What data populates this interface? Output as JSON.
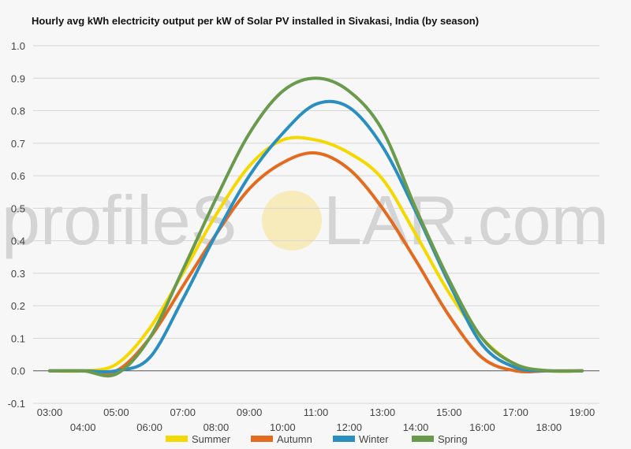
{
  "chart_data": {
    "type": "line",
    "title": "Hourly avg kWh electricity output per kW of Solar PV installed in Sivakasi, India (by season)",
    "xlabel": "",
    "ylabel": "",
    "ylim": [
      -0.1,
      1.0
    ],
    "yticks": [
      "-0.1",
      "0.0",
      "0.1",
      "0.2",
      "0.3",
      "0.4",
      "0.5",
      "0.6",
      "0.7",
      "0.8",
      "0.9",
      "1.0"
    ],
    "xticks": [
      "03:00",
      "04:00",
      "05:00",
      "06:00",
      "07:00",
      "08:00",
      "09:00",
      "10:00",
      "11:00",
      "12:00",
      "13:00",
      "14:00",
      "15:00",
      "16:00",
      "17:00",
      "18:00",
      "19:00"
    ],
    "x": [
      3,
      4,
      5,
      6,
      7,
      8,
      9,
      10,
      11,
      12,
      13,
      14,
      15,
      16,
      17,
      18,
      19
    ],
    "grid": true,
    "legend_position": "bottom",
    "series": [
      {
        "name": "Summer",
        "color": "#f5d800",
        "values": [
          0,
          0,
          0.02,
          0.13,
          0.3,
          0.48,
          0.63,
          0.71,
          0.71,
          0.67,
          0.59,
          0.42,
          0.24,
          0.1,
          0.02,
          0,
          0
        ]
      },
      {
        "name": "Autumn",
        "color": "#e26b20",
        "values": [
          0,
          0,
          0,
          0.1,
          0.26,
          0.42,
          0.56,
          0.64,
          0.67,
          0.62,
          0.5,
          0.34,
          0.17,
          0.04,
          0,
          0,
          0
        ]
      },
      {
        "name": "Winter",
        "color": "#2a8fc0",
        "values": [
          0,
          0,
          0,
          0.04,
          0.22,
          0.42,
          0.6,
          0.73,
          0.82,
          0.81,
          0.69,
          0.49,
          0.27,
          0.08,
          0.01,
          0,
          0
        ]
      },
      {
        "name": "Spring",
        "color": "#6a9a4d",
        "values": [
          0,
          0,
          -0.01,
          0.1,
          0.31,
          0.53,
          0.73,
          0.86,
          0.9,
          0.86,
          0.74,
          0.5,
          0.28,
          0.1,
          0.02,
          0,
          0
        ]
      }
    ]
  },
  "watermark": {
    "text_left": "profileS",
    "text_right": "LAR.com",
    "sun_color": "#f7e7b0"
  }
}
